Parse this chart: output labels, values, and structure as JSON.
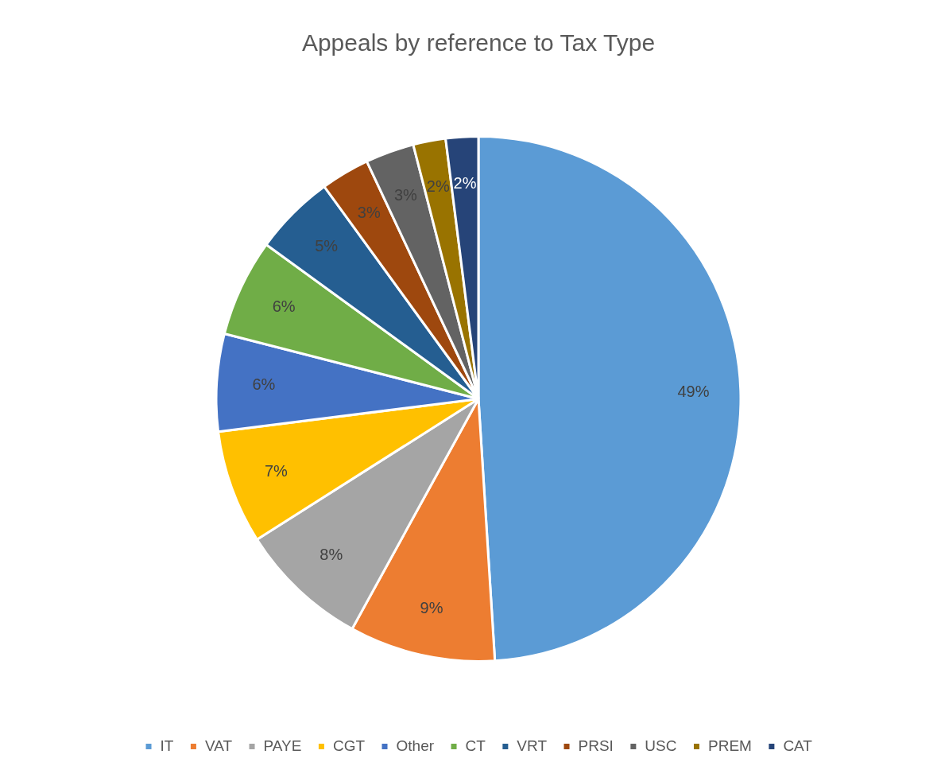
{
  "chart_data": {
    "type": "pie",
    "title": "Appeals by reference to Tax Type",
    "categories": [
      "IT",
      "VAT",
      "PAYE",
      "CGT",
      "Other",
      "CT",
      "VRT",
      "PRSI",
      "USC",
      "PREM",
      "CAT"
    ],
    "values": [
      49,
      9,
      8,
      7,
      6,
      6,
      5,
      3,
      3,
      2,
      2
    ],
    "value_labels": [
      "49%",
      "9%",
      "8%",
      "7%",
      "6%",
      "6%",
      "5%",
      "3%",
      "3%",
      "2%",
      "2%"
    ],
    "colors": [
      "#5b9bd5",
      "#ed7d31",
      "#a5a5a5",
      "#ffc000",
      "#4472c4",
      "#70ad47",
      "#255e91",
      "#9e480e",
      "#636363",
      "#997300",
      "#264478"
    ],
    "legend": "bottom"
  }
}
